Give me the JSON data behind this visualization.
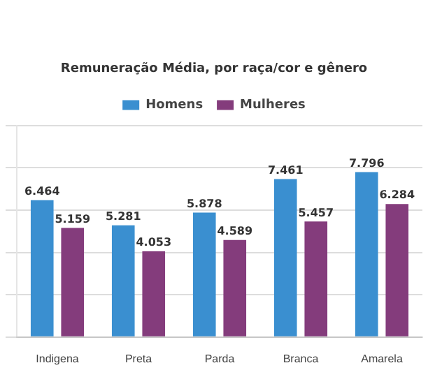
{
  "chart_data": {
    "type": "bar",
    "title": "Remuneração Média, por raça/cor e gênero",
    "categories": [
      "Indigena",
      "Preta",
      "Parda",
      "Branca",
      "Amarela"
    ],
    "series": [
      {
        "name": "Homens",
        "color": "#3a8fd0",
        "values": [
          6464,
          5281,
          5878,
          7461,
          7796
        ],
        "value_labels": [
          "6.464",
          "5.281",
          "5.878",
          "7.461",
          "7.796"
        ]
      },
      {
        "name": "Mulheres",
        "color": "#843c7c",
        "values": [
          5159,
          4053,
          4589,
          5457,
          6284
        ],
        "value_labels": [
          "5.159",
          "4.053",
          "4.589",
          "5.457",
          "6.284"
        ]
      }
    ],
    "ylim": [
      0,
      10000
    ],
    "yticks": [
      {
        "value": 0,
        "label": null
      },
      {
        "value": 2000,
        "label": null
      },
      {
        "value": 4000,
        "label": null
      },
      {
        "value": 6000,
        "label": null
      },
      {
        "value": 8000,
        "label": null
      },
      {
        "value": 10000,
        "label": null
      }
    ],
    "tick_labels": "x",
    "grid": "y",
    "legend": "top"
  }
}
